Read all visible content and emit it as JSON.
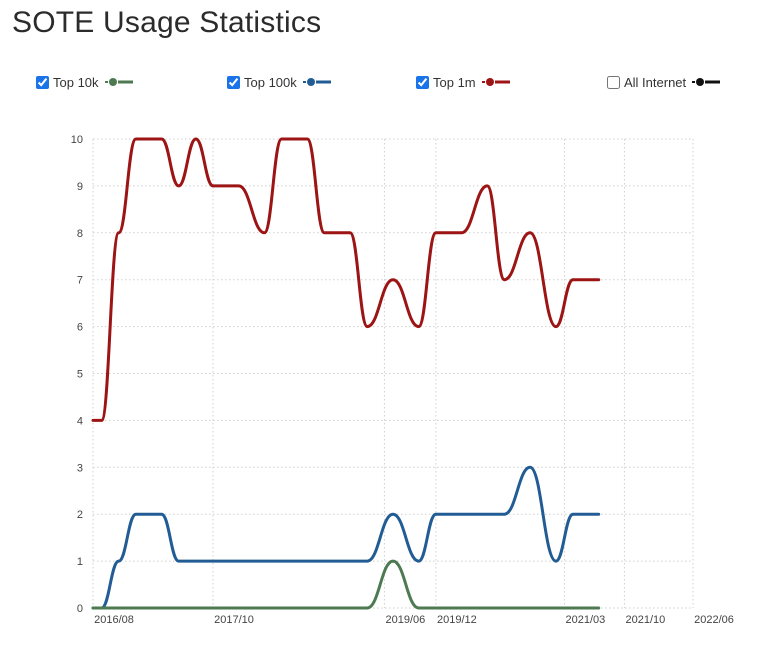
{
  "page": {
    "title": "SOTE Usage Statistics"
  },
  "legend": [
    {
      "label": "Top 10k",
      "checked": true,
      "color": "#4e7a52"
    },
    {
      "label": "Top 100k",
      "checked": true,
      "color": "#225c94"
    },
    {
      "label": "Top 1m",
      "checked": true,
      "color": "#9c1414"
    },
    {
      "label": "All Internet",
      "checked": false,
      "color": "#111111"
    }
  ],
  "chart_data": {
    "type": "line",
    "title": "SOTE Usage Statistics",
    "x_tick_labels": [
      "2016/08",
      "2017/10",
      "2019/06",
      "2019/12",
      "2021/03",
      "2021/10",
      "2022/06"
    ],
    "y_tick_labels": [
      "0",
      "1",
      "2",
      "3",
      "4",
      "5",
      "6",
      "7",
      "8",
      "9",
      "10"
    ],
    "ylim": [
      0,
      10
    ],
    "grid": true,
    "legend_position": "top",
    "series": [
      {
        "name": "Top 1m",
        "color": "#9c1414",
        "points": [
          [
            "2016/08",
            4
          ],
          [
            "2016/09",
            4
          ],
          [
            "2016/11",
            8
          ],
          [
            "2017/01",
            10
          ],
          [
            "2017/04",
            10
          ],
          [
            "2017/06",
            9
          ],
          [
            "2017/08",
            10
          ],
          [
            "2017/10",
            9
          ],
          [
            "2018/01",
            9
          ],
          [
            "2018/04",
            8
          ],
          [
            "2018/06",
            10
          ],
          [
            "2018/09",
            10
          ],
          [
            "2018/11",
            8
          ],
          [
            "2019/02",
            8
          ],
          [
            "2019/04",
            6
          ],
          [
            "2019/07",
            7
          ],
          [
            "2019/10",
            6
          ],
          [
            "2019/12",
            8
          ],
          [
            "2020/03",
            8
          ],
          [
            "2020/06",
            9
          ],
          [
            "2020/08",
            7
          ],
          [
            "2020/11",
            8
          ],
          [
            "2021/02",
            6
          ],
          [
            "2021/04",
            7
          ],
          [
            "2021/07",
            7
          ]
        ]
      },
      {
        "name": "Top 100k",
        "color": "#225c94",
        "points": [
          [
            "2016/08",
            0
          ],
          [
            "2016/09",
            0
          ],
          [
            "2016/11",
            1
          ],
          [
            "2017/01",
            2
          ],
          [
            "2017/04",
            2
          ],
          [
            "2017/06",
            1
          ],
          [
            "2019/04",
            1
          ],
          [
            "2019/07",
            2
          ],
          [
            "2019/10",
            1
          ],
          [
            "2019/12",
            2
          ],
          [
            "2020/08",
            2
          ],
          [
            "2020/11",
            3
          ],
          [
            "2021/02",
            1
          ],
          [
            "2021/04",
            2
          ],
          [
            "2021/07",
            2
          ]
        ]
      },
      {
        "name": "Top 10k",
        "color": "#4e7a52",
        "points": [
          [
            "2016/08",
            0
          ],
          [
            "2019/04",
            0
          ],
          [
            "2019/07",
            1
          ],
          [
            "2019/10",
            0
          ],
          [
            "2021/07",
            0
          ]
        ]
      }
    ]
  }
}
